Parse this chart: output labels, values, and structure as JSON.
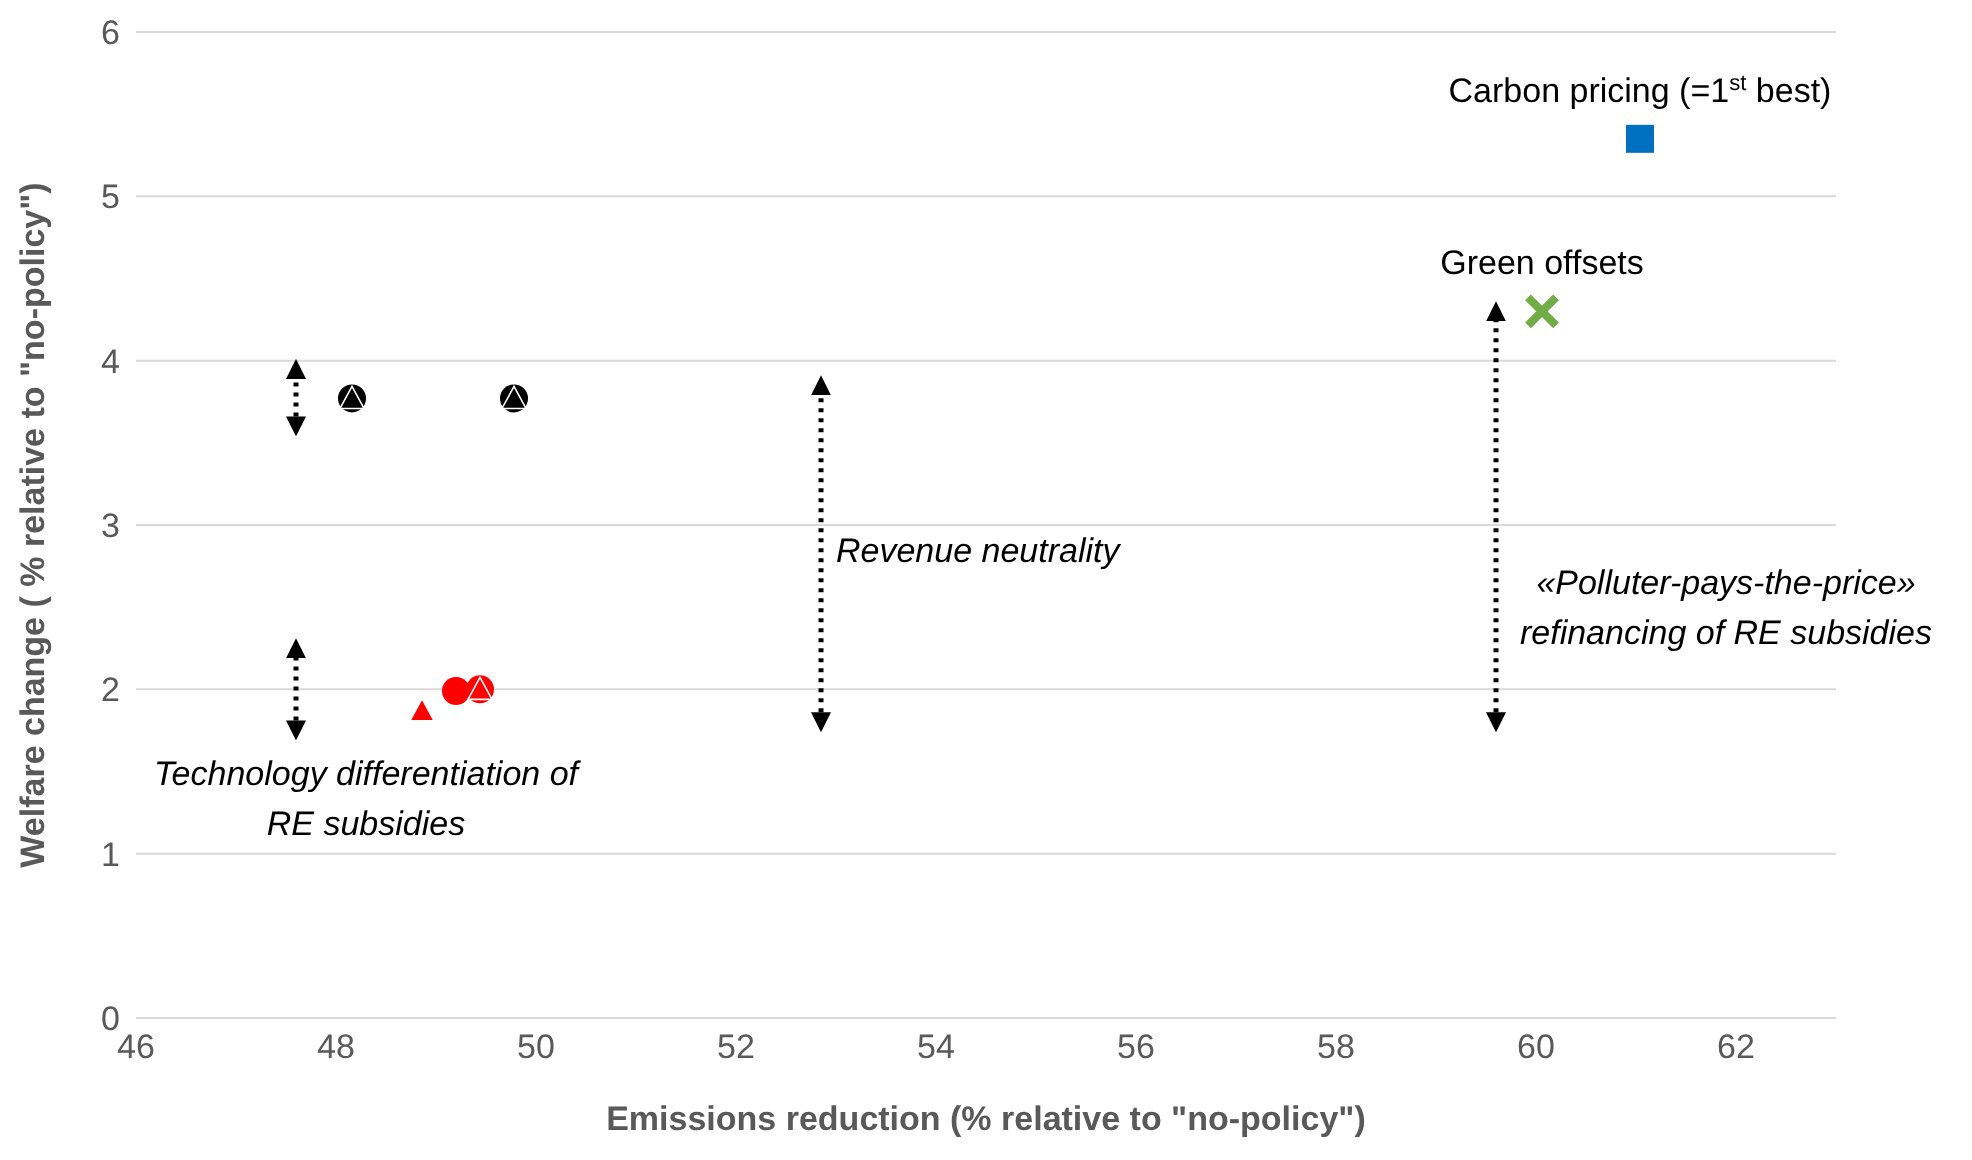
{
  "chart_data": {
    "type": "scatter",
    "xlabel": "Emissions reduction (% relative to \"no-policy\")",
    "ylabel": "Welfare change ( % relative to \"no-policy\")",
    "xlim": [
      46,
      63
    ],
    "xticks": [
      46,
      48,
      50,
      52,
      54,
      56,
      58,
      60,
      62
    ],
    "ylim": [
      0,
      6
    ],
    "yticks": [
      0,
      1,
      2,
      3,
      4,
      5,
      6
    ],
    "grid": "y",
    "legend": false,
    "series": [
      {
        "name": "Carbon pricing (=1$^{st}$ best)",
        "color": "#0070c0",
        "marker": "square",
        "x": [
          61.04
        ],
        "values": [
          5.35
        ]
      },
      {
        "name": "Green offsets",
        "color": "#70ad47",
        "marker": "cross",
        "x": [
          60.06
        ],
        "values": [
          4.3
        ]
      },
      {
        "color": "#000000",
        "marker": "circle",
        "x": [
          49.78,
          48.16
        ],
        "values": [
          3.77,
          3.77
        ]
      },
      {
        "color": "#000000",
        "marker": "triangle",
        "x": [
          49.78,
          48.16
        ],
        "values": [
          3.77,
          3.77
        ]
      },
      {
        "color": "#ff0000",
        "marker": "circle",
        "x": [
          49.2,
          49.44
        ],
        "values": [
          1.99,
          2.0
        ]
      },
      {
        "color": "#ff0000",
        "marker": "triangle",
        "x": [
          48.86,
          49.44
        ],
        "values": [
          1.87,
          2.0
        ]
      }
    ],
    "annotations": [
      "Revenue neutrality",
      "«Polluter-pays-the-price»\nrefinancing of RE subsidies",
      "Technology differentiation of\nRE subsidies"
    ]
  }
}
